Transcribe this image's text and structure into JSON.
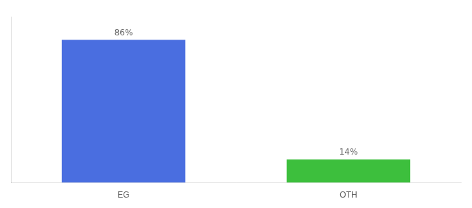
{
  "chart_data": {
    "type": "bar",
    "categories": [
      "EG",
      "OTH"
    ],
    "values": [
      86,
      14
    ],
    "value_labels": [
      "86%",
      "14%"
    ],
    "colors": [
      "#4a6ee0",
      "#3dbf3d"
    ],
    "ylim": [
      0,
      100
    ],
    "grid": false,
    "data_labels": true,
    "tick_labels": "x"
  }
}
